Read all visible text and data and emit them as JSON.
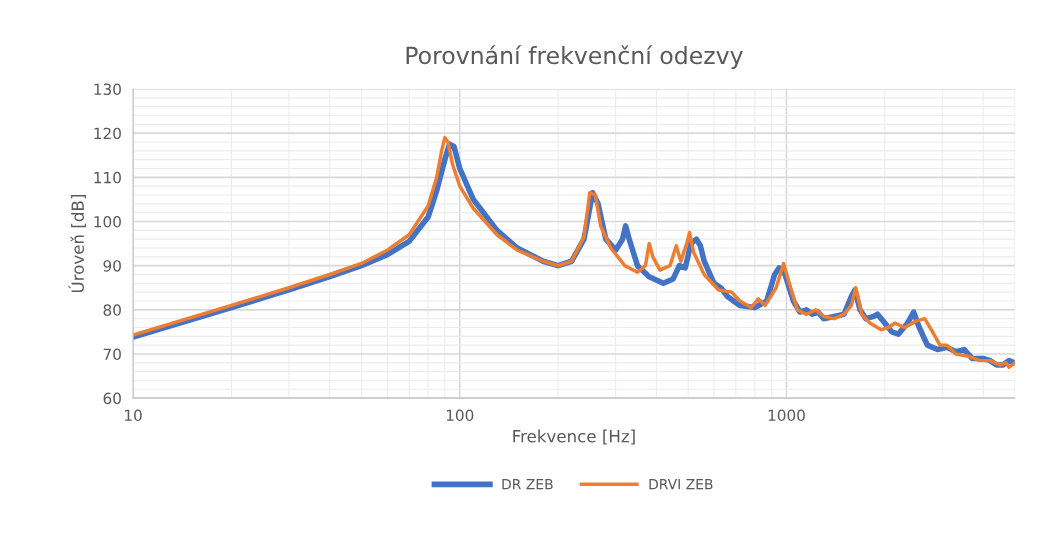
{
  "chart_data": {
    "type": "line",
    "title": "Porovnání frekvenční odezvy",
    "xlabel": "Frekvence [Hz]",
    "ylabel": "Úroveň [dB]",
    "log": "x",
    "xlim": [
      10,
      5000
    ],
    "xticks": [
      10,
      100,
      1000
    ],
    "ylim": [
      60,
      130
    ],
    "yticks": [
      60,
      70,
      80,
      90,
      100,
      110,
      120,
      130
    ],
    "grid": true,
    "legend": "bottom",
    "marker": "none",
    "line_style": "solid",
    "series": [
      {
        "name": "DR ZEB",
        "color": "#4472c4",
        "x": [
          10,
          20,
          30,
          40,
          50,
          60,
          70,
          80,
          85,
          90,
          93,
          96,
          100,
          110,
          130,
          150,
          180,
          200,
          220,
          240,
          255,
          265,
          280,
          300,
          315,
          322,
          330,
          350,
          380,
          420,
          450,
          470,
          490,
          510,
          530,
          545,
          560,
          600,
          630,
          660,
          720,
          800,
          870,
          920,
          950,
          990,
          1050,
          1100,
          1150,
          1200,
          1250,
          1300,
          1400,
          1500,
          1580,
          1620,
          1680,
          1750,
          1850,
          1900,
          2000,
          2100,
          2200,
          2350,
          2450,
          2550,
          2700,
          2900,
          3100,
          3300,
          3500,
          3700,
          4000,
          4200,
          4400,
          4600,
          4800,
          5000
        ],
        "values": [
          73.8,
          80.5,
          84.5,
          87.5,
          90,
          92.5,
          95.5,
          101,
          107,
          114,
          117.5,
          117,
          112,
          105,
          98,
          94,
          91,
          90,
          91,
          96,
          106.5,
          104,
          96,
          93.5,
          96,
          99,
          96,
          90,
          87.5,
          86,
          87,
          90,
          89.5,
          95,
          96,
          94.5,
          91,
          86,
          85,
          83,
          81,
          80.5,
          82,
          88,
          89.5,
          88,
          82,
          79.5,
          80,
          79,
          79.5,
          78,
          78.5,
          79,
          83,
          84.5,
          80,
          78,
          78.5,
          79,
          77,
          75,
          74.5,
          77,
          79.5,
          76,
          72,
          71,
          71.5,
          70.5,
          71,
          69,
          69,
          68.5,
          67.5,
          67.5,
          68.5,
          68
        ]
      },
      {
        "name": "DRVI ZEB",
        "color": "#ed7d31",
        "x": [
          10,
          20,
          30,
          40,
          50,
          60,
          70,
          80,
          85,
          88,
          90,
          92,
          95,
          100,
          110,
          130,
          150,
          180,
          200,
          220,
          240,
          250,
          260,
          270,
          290,
          320,
          350,
          370,
          380,
          390,
          410,
          440,
          460,
          475,
          495,
          505,
          520,
          560,
          620,
          680,
          720,
          780,
          820,
          860,
          930,
          980,
          1020,
          1080,
          1150,
          1230,
          1300,
          1400,
          1500,
          1580,
          1630,
          1700,
          1800,
          1950,
          2050,
          2150,
          2300,
          2500,
          2650,
          2800,
          2950,
          3100,
          3300,
          3600,
          3900,
          4200,
          4500,
          4700,
          4800,
          5000
        ],
        "values": [
          74.3,
          81,
          85,
          88,
          90.5,
          93.5,
          97,
          103.5,
          110,
          116,
          119,
          118,
          113,
          108,
          103,
          97,
          93.5,
          91,
          90,
          91,
          96.5,
          106.5,
          106,
          99,
          94,
          90,
          88.5,
          90,
          95,
          92,
          89,
          90,
          94.5,
          91,
          95,
          97.5,
          93,
          88,
          84.5,
          84,
          82,
          80.5,
          82.5,
          81,
          85,
          90.5,
          86,
          80,
          79,
          80,
          78.5,
          78,
          79,
          81,
          85,
          79,
          77,
          75.5,
          76,
          77,
          76,
          77.5,
          78,
          75,
          72,
          72,
          70,
          69.5,
          68.5,
          68.5,
          67.5,
          68,
          67,
          68
        ]
      }
    ]
  }
}
